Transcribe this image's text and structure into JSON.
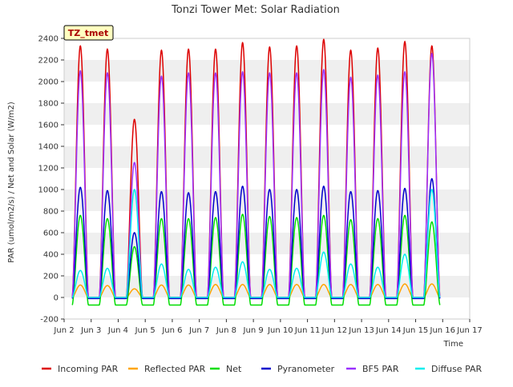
{
  "chart_data": {
    "type": "line",
    "title": "Tonzi Tower Met: Solar Radiation",
    "xlabel": "Time",
    "ylabel": "PAR (umol/m2/s) / Net and Solar (W/m2)",
    "ylim": [
      -200,
      2400
    ],
    "xlim": [
      2,
      17
    ],
    "yticks": [
      -200,
      0,
      200,
      400,
      600,
      800,
      1000,
      1200,
      1400,
      1600,
      1800,
      2000,
      2200,
      2400
    ],
    "xticks": [
      {
        "value": 2,
        "label": "Jun 2"
      },
      {
        "value": 3,
        "label": "Jun 3"
      },
      {
        "value": 4,
        "label": "Jun 4"
      },
      {
        "value": 5,
        "label": "Jun 5"
      },
      {
        "value": 6,
        "label": "Jun 6"
      },
      {
        "value": 7,
        "label": "Jun 7"
      },
      {
        "value": 8,
        "label": "Jun 8"
      },
      {
        "value": 9,
        "label": "Jun 9"
      },
      {
        "value": 10,
        "label": "Jun 10"
      },
      {
        "value": 11,
        "label": "Jun 11"
      },
      {
        "value": 12,
        "label": "Jun 12"
      },
      {
        "value": 13,
        "label": "Jun 13"
      },
      {
        "value": 14,
        "label": "Jun 14"
      },
      {
        "value": 15,
        "label": "Jun 15"
      },
      {
        "value": 16,
        "label": "Jun 16"
      },
      {
        "value": 17,
        "label": "Jun 17"
      }
    ],
    "grid_bands": true,
    "site_label": "TZ_tmet",
    "legend_position": "bottom",
    "days": [
      2.6,
      3.6,
      4.6,
      5.6,
      6.6,
      7.6,
      8.6,
      9.6,
      10.6,
      11.6,
      12.6,
      13.6,
      14.6,
      15.6
    ],
    "series": [
      {
        "name": "Incoming PAR",
        "color": "#dd0000",
        "night": 0,
        "peaks": [
          2330,
          2300,
          1650,
          2290,
          2300,
          2300,
          2360,
          2320,
          2330,
          2390,
          2290,
          2310,
          2370,
          2330
        ]
      },
      {
        "name": "Reflected PAR",
        "color": "#ffa500",
        "night": 0,
        "peaks": [
          115,
          110,
          80,
          115,
          115,
          120,
          120,
          120,
          120,
          120,
          120,
          120,
          125,
          125
        ]
      },
      {
        "name": "Net",
        "color": "#00dd00",
        "night": -70,
        "peaks": [
          760,
          730,
          470,
          730,
          730,
          740,
          770,
          750,
          740,
          760,
          720,
          730,
          760,
          700
        ]
      },
      {
        "name": "Pyranometer",
        "color": "#0000cc",
        "night": -10,
        "peaks": [
          1020,
          990,
          600,
          980,
          970,
          980,
          1030,
          1000,
          1000,
          1030,
          980,
          990,
          1010,
          1100
        ]
      },
      {
        "name": "BF5 PAR",
        "color": "#9b30ff",
        "night": 0,
        "peaks": [
          2100,
          2080,
          1250,
          2050,
          2080,
          2080,
          2090,
          2080,
          2080,
          2110,
          2040,
          2060,
          2090,
          2260
        ]
      },
      {
        "name": "Diffuse PAR",
        "color": "#00eeee",
        "night": 0,
        "peaks": [
          250,
          270,
          1000,
          310,
          260,
          280,
          330,
          260,
          270,
          420,
          310,
          280,
          400,
          1000
        ]
      }
    ]
  }
}
